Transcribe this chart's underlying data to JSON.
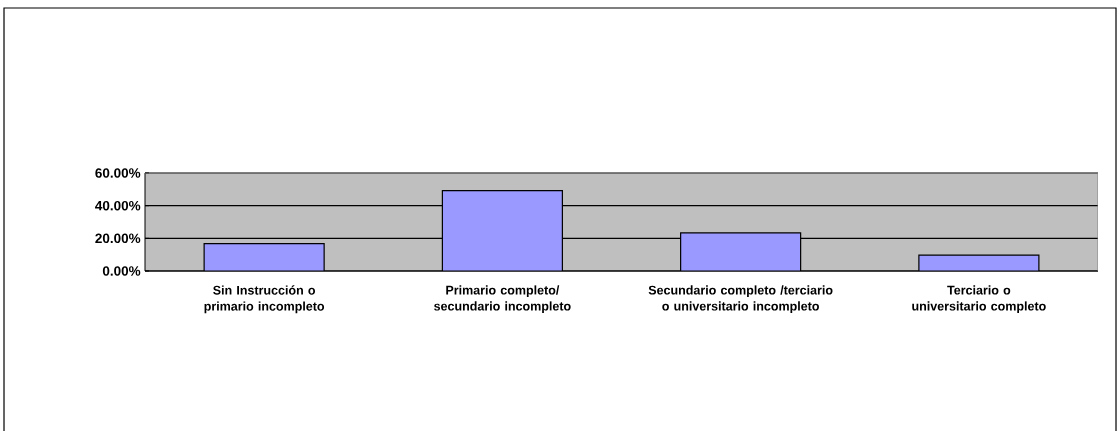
{
  "chart_data": {
    "type": "bar",
    "categories": [
      "Sin Instrucción o primario incompleto",
      "Primario completo/ secundario incompleto",
      "Secundario completo /terciario o universitario incompleto",
      "Terciario o universitario completo"
    ],
    "values": [
      16.7,
      49.2,
      23.3,
      9.7
    ],
    "color": "#9999ff",
    "ylim": [
      0,
      60
    ],
    "yticks": [
      {
        "value": 0,
        "label": "0.00%"
      },
      {
        "value": 20,
        "label": "20.00%"
      },
      {
        "value": 40,
        "label": "40.00%"
      },
      {
        "value": 60,
        "label": "60.00%"
      }
    ],
    "grid": "y"
  }
}
